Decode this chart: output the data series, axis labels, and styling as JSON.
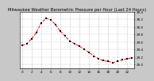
{
  "title": "Milwaukee Weather Barometric Pressure per Hour (Last 24 Hours)",
  "hours": [
    0,
    1,
    2,
    3,
    4,
    5,
    6,
    7,
    8,
    9,
    10,
    11,
    12,
    13,
    14,
    15,
    16,
    17,
    18,
    19,
    20,
    21,
    22,
    23
  ],
  "pressure": [
    29.5,
    29.55,
    29.68,
    29.85,
    30.1,
    30.22,
    30.18,
    30.05,
    29.88,
    29.75,
    29.62,
    29.55,
    29.48,
    29.4,
    29.32,
    29.22,
    29.15,
    29.1,
    29.08,
    29.05,
    29.08,
    29.12,
    29.15,
    29.18
  ],
  "line_color": "#ff0000",
  "marker_color": "#000000",
  "bg_color": "#c8c8c8",
  "plot_bg": "#ffffff",
  "ylim": [
    28.9,
    30.4
  ],
  "ytick_values": [
    29.0,
    29.2,
    29.4,
    29.6,
    29.8,
    30.0,
    30.2,
    30.4
  ],
  "ytick_labels": [
    "29.0",
    "29.2",
    "29.4",
    "29.6",
    "29.8",
    "30.0",
    "30.2",
    "30.4"
  ],
  "xtick_values": [
    0,
    2,
    4,
    6,
    8,
    10,
    12,
    14,
    16,
    18,
    20,
    22
  ],
  "title_fontsize": 3.8,
  "axis_fontsize": 3.0,
  "grid_color": "#888888",
  "line_width": 0.7,
  "marker_size": 1.8
}
